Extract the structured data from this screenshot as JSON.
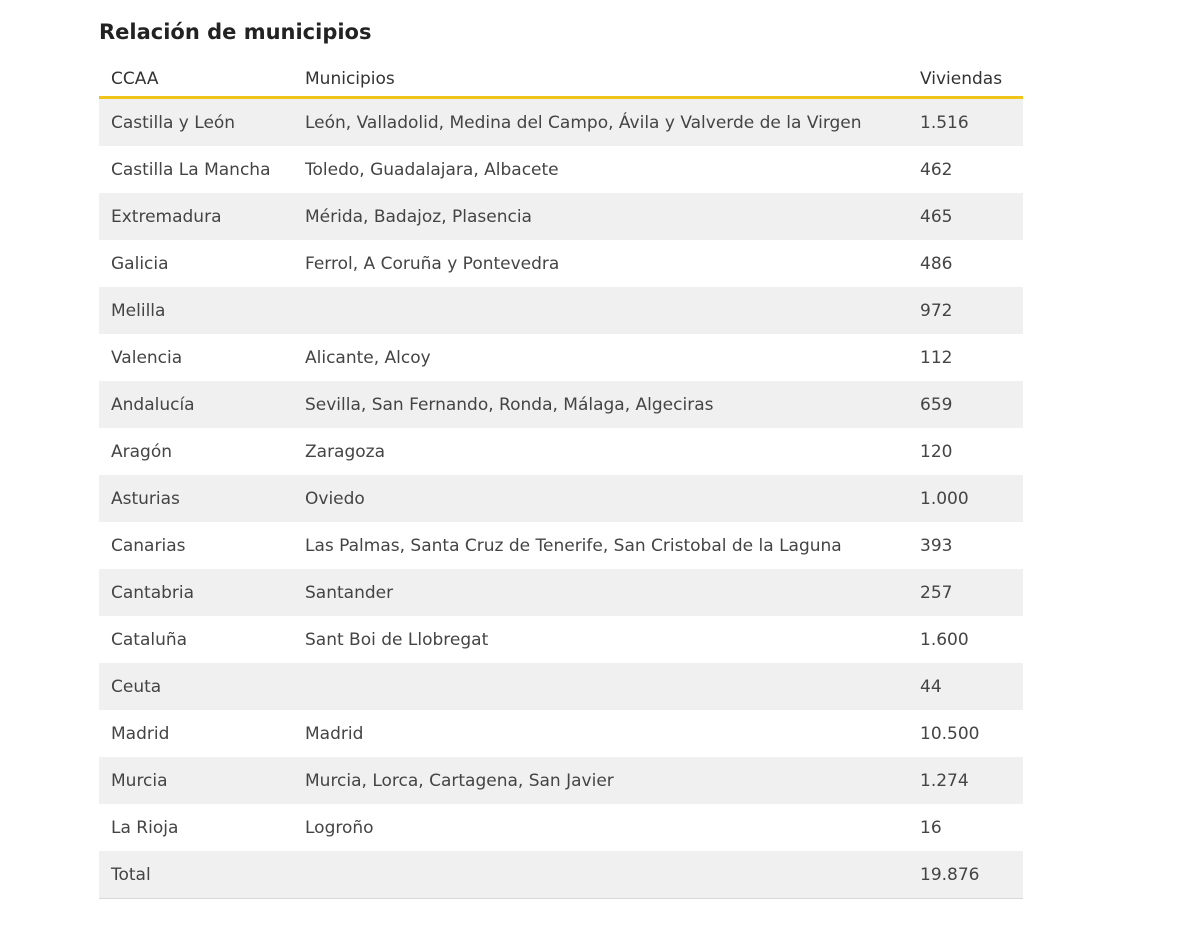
{
  "title": "Relación de municipios",
  "table": {
    "headers": [
      "CCAA",
      "Municipios",
      "Viviendas"
    ],
    "rows": [
      [
        "Castilla y León",
        "León, Valladolid, Medina del Campo, Ávila y Valverde de la Virgen",
        "1.516"
      ],
      [
        "Castilla La Mancha",
        "Toledo, Guadalajara, Albacete",
        "462"
      ],
      [
        "Extremadura",
        "Mérida, Badajoz, Plasencia",
        "465"
      ],
      [
        "Galicia",
        "Ferrol, A Coruña y Pontevedra",
        "486"
      ],
      [
        "Melilla",
        "",
        "972"
      ],
      [
        "Valencia",
        "Alicante, Alcoy",
        "112"
      ],
      [
        "Andalucía",
        "Sevilla, San Fernando, Ronda, Málaga, Algeciras",
        "659"
      ],
      [
        "Aragón",
        "Zaragoza",
        "120"
      ],
      [
        "Asturias",
        "Oviedo",
        "1.000"
      ],
      [
        "Canarias",
        "Las Palmas, Santa Cruz de Tenerife, San Cristobal de la Laguna",
        "393"
      ],
      [
        "Cantabria",
        "Santander",
        "257"
      ],
      [
        "Cataluña",
        "Sant Boi de Llobregat",
        "1.600"
      ],
      [
        "Ceuta",
        "",
        "44"
      ],
      [
        "Madrid",
        "Madrid",
        "10.500"
      ],
      [
        "Murcia",
        "Murcia, Lorca, Cartagena, San Javier",
        "1.274"
      ],
      [
        "La Rioja",
        "Logroño",
        "16"
      ],
      [
        "Total",
        "",
        "19.876"
      ]
    ]
  },
  "colors": {
    "header_rule": "#f0c419",
    "stripe": "#f0f0f0"
  }
}
